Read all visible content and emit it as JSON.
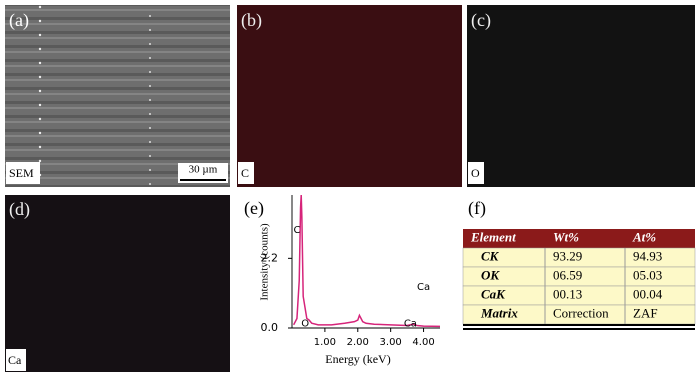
{
  "panels": [
    {
      "label": "(a)",
      "map_label": "SEM",
      "scale_bar": "30 µm"
    },
    {
      "label": "(b)",
      "map_label": "C"
    },
    {
      "label": "(c)",
      "map_label": "O"
    },
    {
      "label": "(d)",
      "map_label": "Ca"
    }
  ],
  "chart_data": {
    "type": "line",
    "panel_label": "(e)",
    "x_label": "Energy (keV)",
    "y_label": "Intensity (counts)",
    "x": [
      0.05,
      0.15,
      0.22,
      0.26,
      0.28,
      0.3,
      0.34,
      0.45,
      0.52,
      0.6,
      0.8,
      1.2,
      1.6,
      1.9,
      2.0,
      2.05,
      2.1,
      2.15,
      2.25,
      2.5,
      3.0,
      3.5,
      3.69,
      3.8,
      4.0,
      4.5
    ],
    "series": [
      {
        "color": "#d6247a",
        "values": [
          0.1,
          0.3,
          1.5,
          3.8,
          4.2,
          3.5,
          1.0,
          0.3,
          0.25,
          0.15,
          0.1,
          0.1,
          0.15,
          0.2,
          0.25,
          0.4,
          0.3,
          0.2,
          0.15,
          0.12,
          0.1,
          0.08,
          0.12,
          0.08,
          0.06,
          0.05
        ]
      }
    ],
    "xlim": [
      0,
      4.5
    ],
    "ylim": [
      0,
      4.2
    ],
    "xticks": [
      {
        "value": 1,
        "label": "1.00"
      },
      {
        "value": 2,
        "label": "2.00"
      },
      {
        "value": 3,
        "label": "3.00"
      },
      {
        "value": 4,
        "label": "4.00"
      }
    ],
    "yticks": [
      {
        "value": 0,
        "label": "0.0"
      },
      2.2
    ],
    "annotations": [
      {
        "text": "C",
        "x": 0.15,
        "y": 3.1
      },
      {
        "text": "O",
        "x": 0.4,
        "y": 0.15
      },
      {
        "text": "Ca",
        "x": 4.0,
        "y": 1.3
      },
      {
        "text": "Ca",
        "x": 3.6,
        "y": 0.15
      }
    ]
  },
  "table": {
    "panel_label": "(f)",
    "header": [
      "Element",
      "Wt%",
      "At%"
    ],
    "rows": [
      [
        "CK",
        "93.29",
        "94.93"
      ],
      [
        "OK",
        "06.59",
        "05.03"
      ],
      [
        "CaK",
        "00.13",
        "00.04"
      ],
      [
        "Matrix",
        "Correction",
        "ZAF"
      ]
    ]
  }
}
